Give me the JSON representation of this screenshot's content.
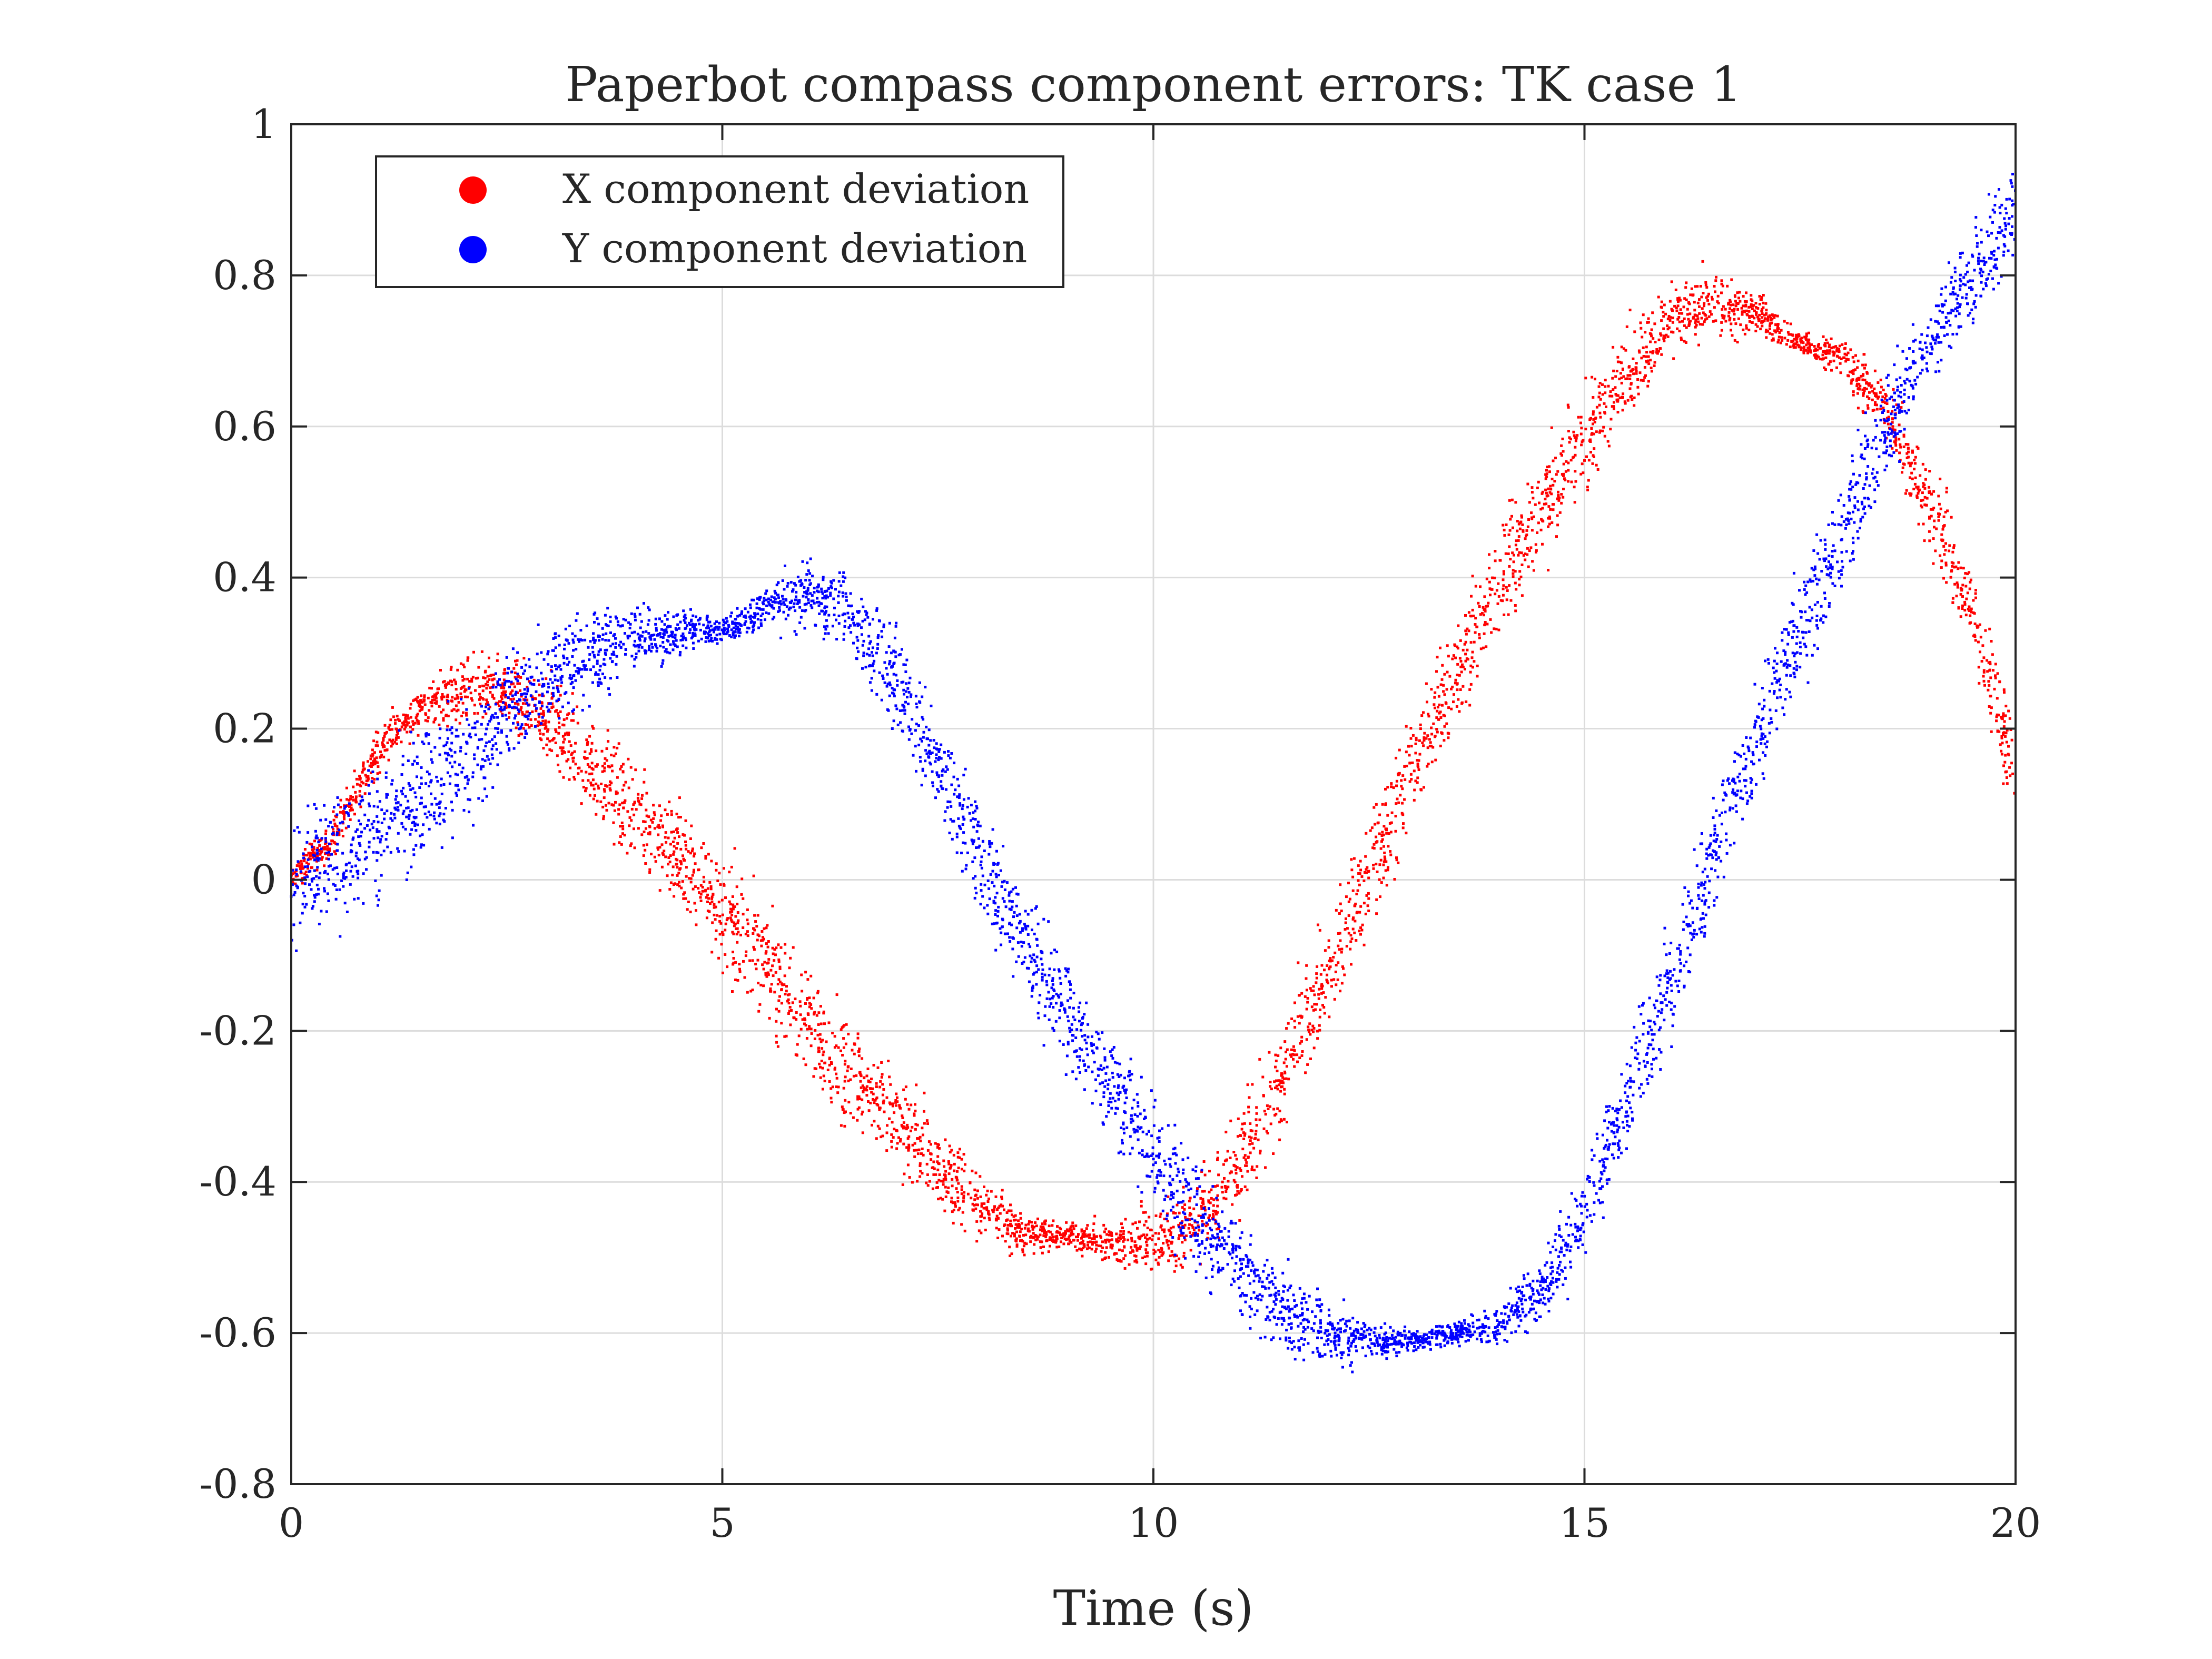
{
  "chart_data": {
    "type": "scatter",
    "title": "Paperbot compass component errors: TK case 1",
    "xlabel": "Time (s)",
    "ylabel": "",
    "xlim": [
      0,
      20
    ],
    "ylim": [
      -0.8,
      1
    ],
    "xticks": [
      0,
      5,
      10,
      15,
      20
    ],
    "yticks": [
      -0.8,
      -0.6,
      -0.4,
      -0.2,
      0,
      0.2,
      0.4,
      0.6,
      0.8,
      1
    ],
    "xtick_labels": [
      "0",
      "5",
      "10",
      "15",
      "20"
    ],
    "ytick_labels": [
      "-0.8",
      "-0.6",
      "-0.4",
      "-0.2",
      "0",
      "0.2",
      "0.4",
      "0.6",
      "0.8",
      "1"
    ],
    "grid": true,
    "legend_position": "top-left",
    "series": [
      {
        "name": "X component deviation",
        "color": "#ff0000",
        "x": [
          0,
          0.5,
          1.0,
          1.5,
          2.0,
          2.5,
          3.0,
          3.5,
          4.0,
          4.5,
          5.0,
          5.5,
          6.0,
          6.5,
          7.0,
          7.5,
          8.0,
          8.5,
          9.0,
          9.5,
          10.0,
          10.5,
          11.0,
          11.5,
          12.0,
          12.5,
          13.0,
          13.5,
          14.0,
          14.5,
          15.0,
          15.5,
          16.0,
          16.5,
          17.0,
          17.5,
          18.0,
          18.5,
          19.0,
          19.5,
          20.0
        ],
        "y": [
          0.0,
          0.06,
          0.17,
          0.23,
          0.25,
          0.25,
          0.21,
          0.15,
          0.09,
          0.03,
          -0.04,
          -0.11,
          -0.19,
          -0.26,
          -0.32,
          -0.38,
          -0.43,
          -0.47,
          -0.47,
          -0.48,
          -0.48,
          -0.45,
          -0.38,
          -0.26,
          -0.13,
          0.01,
          0.15,
          0.27,
          0.39,
          0.49,
          0.59,
          0.67,
          0.74,
          0.76,
          0.75,
          0.71,
          0.69,
          0.62,
          0.5,
          0.35,
          0.15
        ],
        "spread": [
          0.01,
          0.02,
          0.02,
          0.02,
          0.03,
          0.03,
          0.04,
          0.04,
          0.05,
          0.05,
          0.05,
          0.05,
          0.05,
          0.05,
          0.04,
          0.04,
          0.03,
          0.02,
          0.01,
          0.02,
          0.03,
          0.04,
          0.05,
          0.05,
          0.05,
          0.05,
          0.05,
          0.05,
          0.05,
          0.05,
          0.05,
          0.04,
          0.03,
          0.03,
          0.02,
          0.01,
          0.02,
          0.03,
          0.04,
          0.04,
          0.05
        ]
      },
      {
        "name": "Y component deviation",
        "color": "#0000ff",
        "x": [
          0,
          0.5,
          1.0,
          1.5,
          2.0,
          2.5,
          3.0,
          3.5,
          4.0,
          4.5,
          5.0,
          5.5,
          6.0,
          6.5,
          7.0,
          7.5,
          8.0,
          8.5,
          9.0,
          9.5,
          10.0,
          10.5,
          11.0,
          11.5,
          12.0,
          12.5,
          13.0,
          13.5,
          14.0,
          14.5,
          15.0,
          15.5,
          16.0,
          16.5,
          17.0,
          17.5,
          18.0,
          18.5,
          19.0,
          19.5,
          20.0
        ],
        "y": [
          0.0,
          0.03,
          0.06,
          0.11,
          0.16,
          0.22,
          0.27,
          0.3,
          0.32,
          0.33,
          0.33,
          0.36,
          0.38,
          0.35,
          0.27,
          0.15,
          0.03,
          -0.08,
          -0.18,
          -0.27,
          -0.36,
          -0.45,
          -0.52,
          -0.57,
          -0.6,
          -0.61,
          -0.61,
          -0.6,
          -0.59,
          -0.54,
          -0.44,
          -0.29,
          -0.13,
          0.03,
          0.19,
          0.33,
          0.46,
          0.6,
          0.71,
          0.8,
          0.88
        ],
        "spread": [
          0.06,
          0.06,
          0.06,
          0.06,
          0.06,
          0.05,
          0.05,
          0.04,
          0.03,
          0.02,
          0.01,
          0.02,
          0.03,
          0.04,
          0.05,
          0.05,
          0.05,
          0.05,
          0.05,
          0.05,
          0.05,
          0.05,
          0.04,
          0.04,
          0.03,
          0.02,
          0.01,
          0.01,
          0.02,
          0.03,
          0.04,
          0.05,
          0.05,
          0.05,
          0.05,
          0.05,
          0.05,
          0.05,
          0.04,
          0.04,
          0.04
        ]
      }
    ]
  }
}
